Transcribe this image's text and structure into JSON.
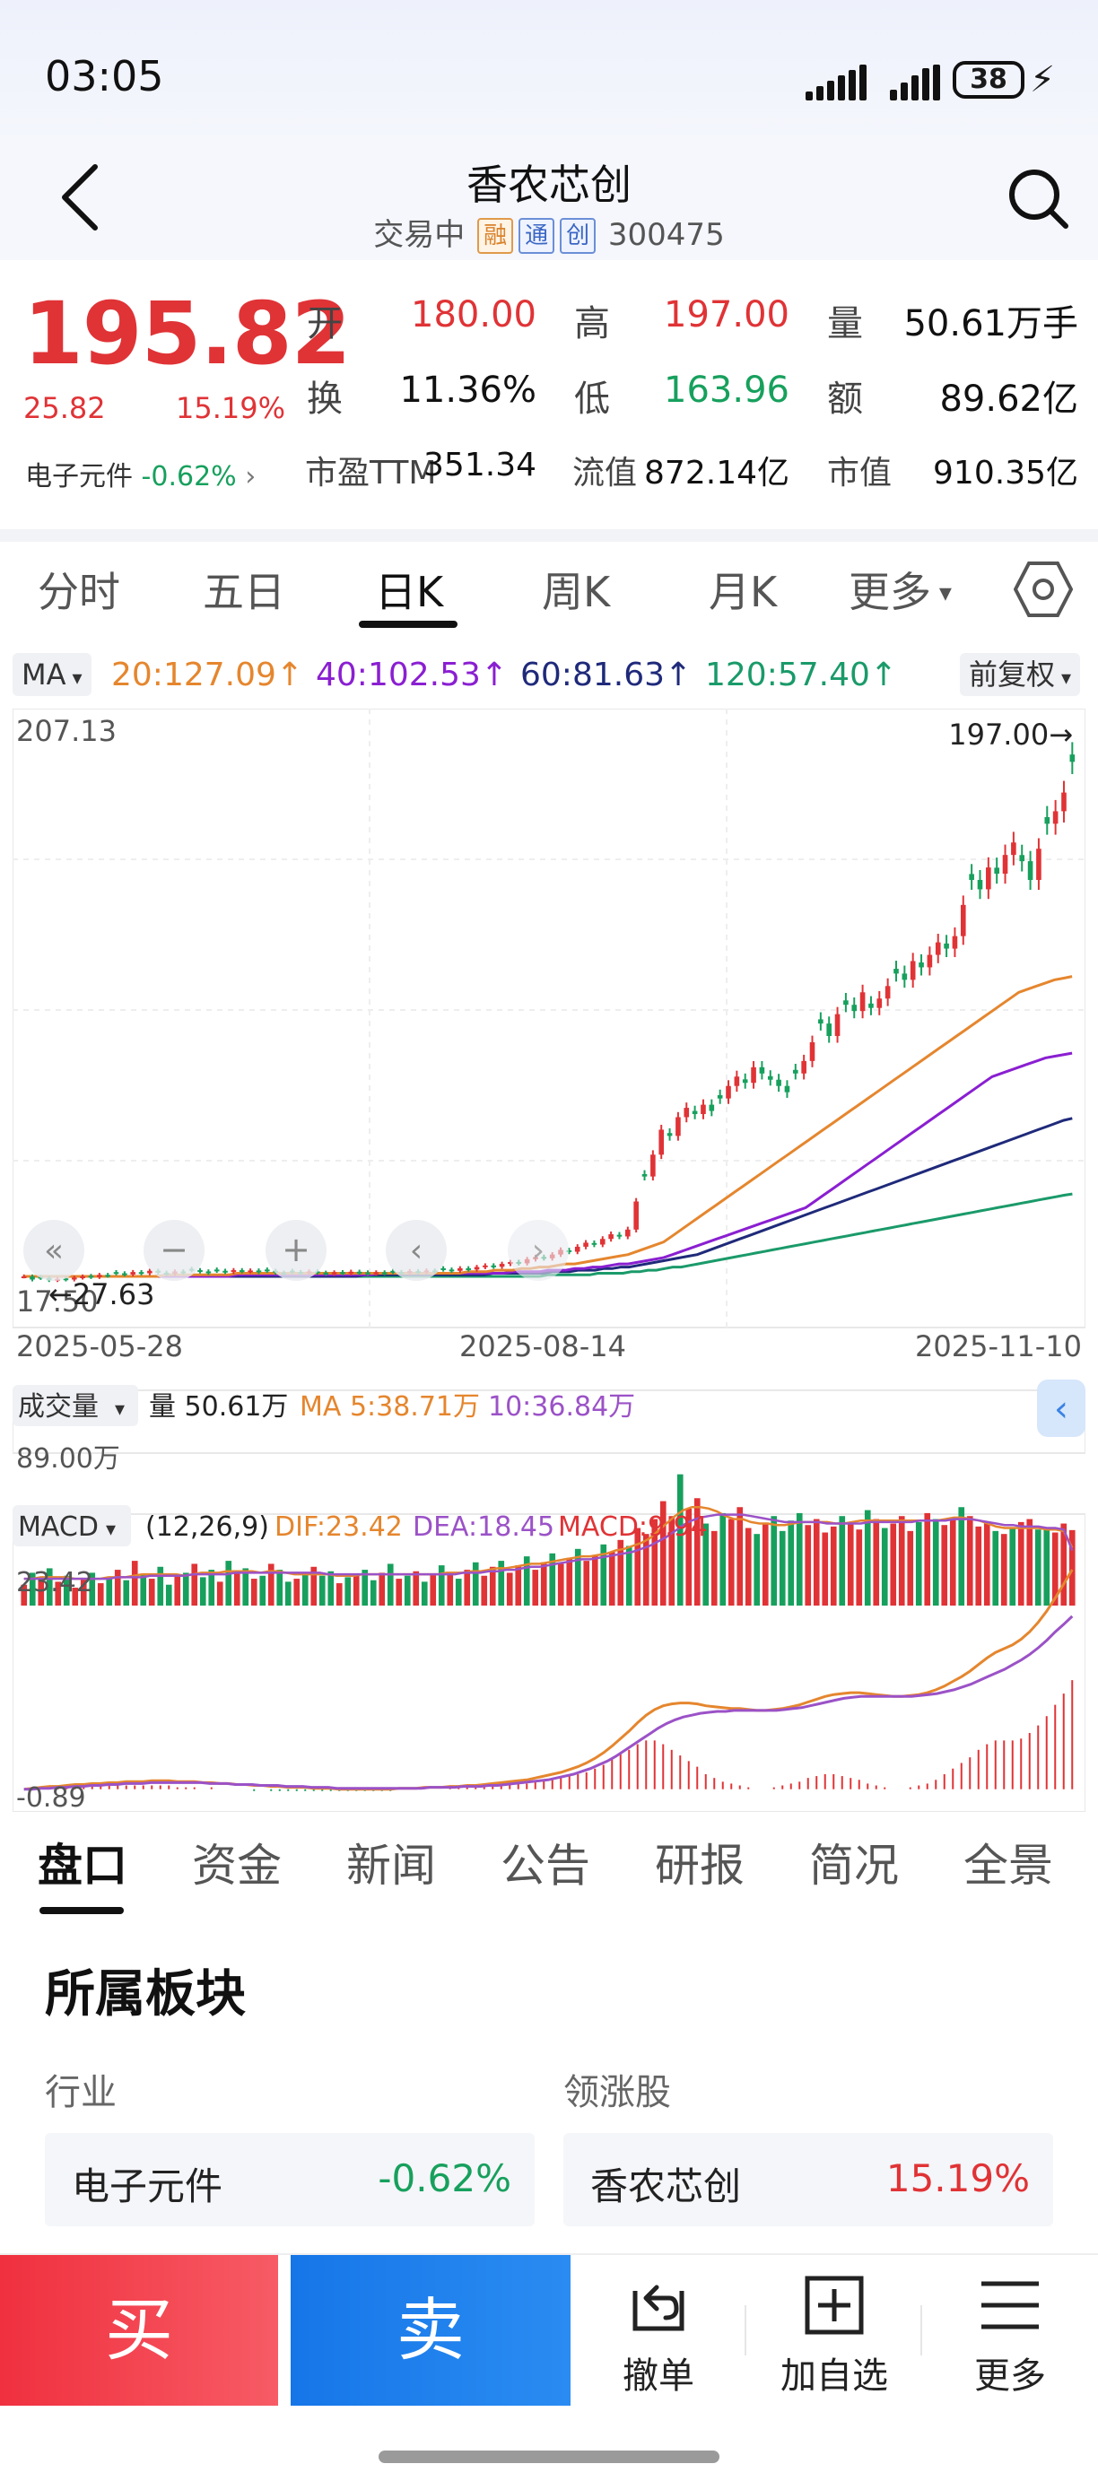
{
  "status_bar": {
    "time": "03:05",
    "battery": "38"
  },
  "header": {
    "title": "香农芯创",
    "status": "交易中",
    "tags": [
      "融",
      "通",
      "创"
    ],
    "code": "300475"
  },
  "quote": {
    "price": "195.82",
    "change": "25.82",
    "change_pct": "15.19%",
    "sector_name": "电子元件",
    "sector_change": "-0.62%",
    "fields": {
      "open_label": "开",
      "open": "180.00",
      "high_label": "高",
      "high": "197.00",
      "volume_label": "量",
      "volume": "50.61万手",
      "turnover_label": "换",
      "turnover": "11.36%",
      "low_label": "低",
      "low": "163.96",
      "amount_label": "额",
      "amount": "89.62亿",
      "pe_label": "市盈TTM",
      "pe": "351.34",
      "float_label": "流值",
      "float_value": "872.14亿",
      "mcap_label": "市值",
      "mcap": "910.35亿"
    }
  },
  "kline_tabs": [
    "分时",
    "五日",
    "日K",
    "周K",
    "月K",
    "更多"
  ],
  "ma_row": {
    "selector": "MA",
    "ma20": "20:127.09↑",
    "ma40": "40:102.53↑",
    "ma60": "60:81.63↑",
    "ma120": "120:57.40↑",
    "adjust": "前复权"
  },
  "colors": {
    "up": "#e03336",
    "down": "#17a05d",
    "ma20": "#e5862e",
    "ma40": "#8a1fd1",
    "ma60": "#1f2a7a",
    "ma120": "#1a9a6a",
    "dif": "#e5862e",
    "dea": "#9b52c7"
  },
  "chart_data": [
    {
      "type": "candlestick",
      "y_max_label": "207.13",
      "y_min_label": "17.50",
      "high_marker": "197.00→",
      "low_marker": "←27.63",
      "x_ticks": [
        "2025-05-28",
        "2025-08-14",
        "2025-11-10"
      ],
      "ylim": [
        17.5,
        207.13
      ],
      "closes": [
        31,
        30,
        30.5,
        29.8,
        30.2,
        30,
        30.6,
        31,
        30.8,
        31.5,
        31.2,
        32,
        31.6,
        32.4,
        32,
        32.8,
        32.2,
        31.8,
        32.6,
        32.2,
        33,
        32.6,
        32.1,
        32.8,
        32.4,
        33,
        32.6,
        32.9,
        32.4,
        32.8,
        32.2,
        31.9,
        32.4,
        32.1,
        32.6,
        32.2,
        31.8,
        32.3,
        32,
        32.5,
        32.1,
        31.9,
        32.3,
        32,
        32.4,
        32.1,
        32.7,
        32.3,
        32.9,
        32.5,
        33.2,
        32.8,
        33.6,
        33.2,
        34,
        34.5,
        34.1,
        35,
        35.6,
        35.2,
        36.5,
        37.2,
        36.8,
        38,
        39.5,
        38.9,
        40.5,
        41.8,
        41.2,
        43,
        44.5,
        43.8,
        46,
        55,
        63,
        70,
        78,
        76,
        82,
        85,
        83,
        86,
        84,
        88,
        92,
        95,
        93,
        98,
        96,
        94,
        92,
        90,
        96,
        100,
        106,
        112,
        108,
        115,
        118,
        116,
        122,
        117,
        120,
        124,
        128,
        126,
        132,
        130,
        134,
        138,
        136,
        140,
        150,
        158,
        155,
        162,
        160,
        166,
        170,
        164,
        158,
        168,
        176,
        180,
        186,
        195.82
      ],
      "ma20": [
        31,
        31,
        31,
        31,
        31,
        31,
        31,
        31,
        31,
        31,
        31,
        31,
        31,
        31,
        31,
        31,
        31.5,
        31.5,
        31.5,
        31.5,
        31.5,
        31.5,
        31.5,
        31.5,
        32,
        32,
        32,
        32,
        32,
        32,
        32,
        32,
        32,
        32,
        32,
        32,
        32,
        32,
        32,
        32,
        32,
        32,
        32,
        32,
        32,
        32,
        32,
        32,
        32,
        32,
        32.5,
        32.5,
        32.5,
        33,
        33,
        33,
        33.5,
        33.5,
        34,
        34,
        34.5,
        35,
        35,
        35.5,
        36,
        36.5,
        37,
        37.5,
        38,
        39,
        40,
        41,
        42,
        44,
        46,
        48,
        50,
        52,
        54,
        56,
        58,
        60,
        62,
        64,
        66,
        68,
        70,
        72,
        74,
        76,
        78,
        80,
        82,
        84,
        86,
        88,
        90,
        92,
        94,
        96,
        98,
        100,
        102,
        104,
        106,
        108,
        110,
        112,
        114,
        116,
        118,
        120,
        122,
        123,
        124,
        125,
        126,
        126.5,
        127.09
      ],
      "ma40": [
        31,
        31,
        31,
        31,
        31,
        31,
        31,
        31,
        31,
        31,
        31,
        31,
        31,
        31,
        31,
        31,
        31,
        31,
        31,
        31,
        31,
        31,
        31,
        31,
        31.5,
        31.5,
        31.5,
        31.5,
        31.5,
        31.5,
        31.5,
        31.5,
        31.5,
        31.5,
        31.5,
        31.5,
        31.5,
        31.5,
        31.5,
        31.5,
        32,
        32,
        32,
        32,
        32,
        32,
        32,
        32,
        32,
        32,
        32,
        32,
        32,
        32,
        32,
        32.5,
        32.5,
        32.5,
        32.5,
        33,
        33,
        33,
        33.5,
        33.5,
        34,
        34,
        34.5,
        35,
        35,
        35.5,
        36,
        36.5,
        37,
        38,
        39,
        40,
        41,
        42,
        43,
        44,
        45,
        46,
        47,
        48,
        49,
        50,
        51,
        52,
        53,
        55,
        57,
        59,
        61,
        63,
        65,
        67,
        69,
        71,
        73,
        75,
        77,
        79,
        81,
        83,
        85,
        87,
        89,
        91,
        93,
        95,
        96,
        97,
        98,
        99,
        100,
        101,
        101.5,
        102,
        102.53
      ],
      "ma60": [
        31,
        31,
        31,
        31,
        31,
        31,
        31,
        31,
        31,
        31,
        31,
        31,
        31,
        31,
        31,
        31,
        31,
        31,
        31,
        31,
        31,
        31,
        31,
        31,
        31,
        31,
        31,
        31,
        31,
        31,
        31,
        31,
        31,
        31,
        31,
        31,
        31,
        31,
        31,
        31,
        31.5,
        31.5,
        31.5,
        31.5,
        31.5,
        31.5,
        31.5,
        31.5,
        31.5,
        31.5,
        31.5,
        31.5,
        31.5,
        31.5,
        31.5,
        32,
        32,
        32,
        32,
        32,
        32,
        32,
        32.5,
        32.5,
        32.5,
        33,
        33,
        33,
        33.5,
        33.5,
        34,
        34,
        34.5,
        35,
        35.5,
        36,
        36.5,
        37,
        37.5,
        38,
        39,
        40,
        41,
        42,
        43,
        44,
        45,
        46,
        47,
        48,
        49,
        50,
        51,
        52,
        53,
        54,
        55,
        56,
        57,
        58,
        59,
        60,
        61,
        62,
        63,
        64,
        65,
        66,
        67,
        68,
        69,
        70,
        71,
        72,
        73,
        74,
        75,
        76,
        77,
        78,
        79,
        80,
        81,
        81.63
      ],
      "ma120": [
        31,
        31,
        31,
        31,
        31,
        31,
        31,
        31,
        31,
        31,
        31,
        31,
        31,
        31,
        31,
        31,
        31,
        31,
        31,
        31,
        31,
        31,
        31,
        31,
        31,
        31,
        31,
        31,
        31,
        31,
        31,
        31,
        31,
        31,
        31,
        31,
        31,
        31,
        31,
        31,
        31,
        31,
        31,
        31,
        31,
        31,
        31,
        31,
        31,
        31,
        31,
        31,
        31,
        31,
        31,
        31,
        31,
        31,
        31,
        31,
        31,
        31,
        31,
        31.5,
        31.5,
        31.5,
        31.5,
        31.5,
        31.5,
        32,
        32,
        32,
        32,
        32.5,
        32.5,
        33,
        33,
        33.5,
        34,
        34,
        34.5,
        35,
        35.5,
        36,
        36.5,
        37,
        37.5,
        38,
        38.5,
        39,
        39.5,
        40,
        40.5,
        41,
        41.5,
        42,
        42.5,
        43,
        43.5,
        44,
        44.5,
        45,
        45.5,
        46,
        46.5,
        47,
        47.5,
        48,
        48.5,
        49,
        49.5,
        50,
        50.5,
        51,
        51.5,
        52,
        52.5,
        53,
        53.5,
        54,
        54.5,
        55,
        55.5,
        56,
        56.5,
        57,
        57.4
      ]
    },
    {
      "type": "bar",
      "name_label": "成交量",
      "volume_label": "量 50.61万",
      "ma5_label": "MA 5:38.71万",
      "ma10_label": "10:36.84万",
      "y_max_label": "89.00万",
      "ylim": [
        0,
        89
      ],
      "values": [
        14,
        22,
        18,
        25,
        16,
        20,
        12,
        18,
        22,
        15,
        19,
        24,
        17,
        30,
        21,
        18,
        26,
        14,
        20,
        22,
        28,
        19,
        24,
        16,
        30,
        22,
        25,
        18,
        20,
        28,
        24,
        16,
        18,
        22,
        26,
        20,
        23,
        15,
        19,
        21,
        24,
        17,
        22,
        28,
        18,
        20,
        23,
        16,
        21,
        27,
        22,
        18,
        24,
        29,
        20,
        26,
        30,
        22,
        27,
        33,
        24,
        29,
        35,
        28,
        32,
        38,
        30,
        34,
        41,
        36,
        44,
        40,
        52,
        48,
        58,
        70,
        60,
        88,
        65,
        72,
        55,
        50,
        62,
        58,
        66,
        52,
        48,
        55,
        60,
        50,
        57,
        62,
        54,
        58,
        49,
        53,
        60,
        56,
        51,
        64,
        58,
        52,
        55,
        60,
        50,
        56,
        62,
        58,
        54,
        59,
        66,
        60,
        53,
        55,
        50,
        48,
        52,
        56,
        58,
        51,
        52,
        49,
        55,
        50.61
      ],
      "ma5": [
        18,
        18,
        19,
        19,
        19,
        19,
        18,
        18,
        18,
        18,
        19,
        19,
        19,
        20,
        21,
        21,
        21,
        21,
        21,
        20,
        21,
        22,
        22,
        22,
        23,
        23,
        23,
        23,
        22,
        23,
        23,
        22,
        21,
        21,
        21,
        21,
        21,
        20,
        20,
        20,
        21,
        21,
        21,
        21,
        21,
        21,
        21,
        21,
        21,
        21,
        22,
        22,
        22,
        23,
        23,
        24,
        25,
        25,
        26,
        27,
        28,
        28,
        29,
        30,
        31,
        32,
        33,
        33,
        34,
        35,
        37,
        38,
        40,
        42,
        45,
        50,
        55,
        60,
        64,
        66,
        66,
        65,
        63,
        60,
        58,
        58,
        56,
        55,
        55,
        54,
        54,
        55,
        56,
        56,
        56,
        56,
        55,
        55,
        56,
        57,
        57,
        57,
        57,
        57,
        57,
        57,
        57,
        57,
        57,
        58,
        59,
        59,
        58,
        57,
        55,
        53,
        52,
        52,
        52,
        52,
        52,
        51,
        51,
        50,
        38.71
      ],
      "ma10": [
        18,
        18,
        18,
        18,
        18,
        18,
        18,
        18,
        18,
        18,
        18,
        19,
        19,
        19,
        19,
        20,
        20,
        20,
        20,
        20,
        21,
        21,
        21,
        21,
        21,
        22,
        22,
        22,
        22,
        22,
        22,
        22,
        22,
        22,
        22,
        22,
        21,
        21,
        21,
        21,
        21,
        21,
        21,
        21,
        21,
        21,
        21,
        21,
        21,
        21,
        21,
        21,
        22,
        22,
        22,
        23,
        23,
        24,
        24,
        25,
        26,
        26,
        27,
        28,
        29,
        30,
        31,
        31,
        32,
        33,
        34,
        35,
        36,
        38,
        40,
        43,
        46,
        50,
        54,
        57,
        59,
        60,
        61,
        61,
        61,
        61,
        60,
        59,
        58,
        57,
        56,
        56,
        56,
        56,
        56,
        55,
        55,
        55,
        55,
        55,
        56,
        56,
        56,
        56,
        56,
        56,
        57,
        57,
        57,
        57,
        58,
        58,
        58,
        57,
        56,
        55,
        54,
        54,
        53,
        53,
        53,
        52,
        52,
        51,
        36.84
      ]
    },
    {
      "type": "line",
      "name_label": "MACD",
      "params": "(12,26,9)",
      "dif_label": "DIF:23.42",
      "dea_label": "DEA:18.45",
      "macd_label": "MACD:9.94",
      "y_max_label": "23.42",
      "y_min_label": "-0.89",
      "ylim": [
        -0.89,
        23.42
      ],
      "dif": [
        0,
        0.1,
        0.2,
        0.3,
        0.3,
        0.4,
        0.5,
        0.5,
        0.6,
        0.6,
        0.7,
        0.7,
        0.8,
        0.8,
        0.8,
        0.9,
        0.9,
        0.9,
        0.8,
        0.8,
        0.8,
        0.7,
        0.7,
        0.6,
        0.6,
        0.5,
        0.5,
        0.4,
        0.4,
        0.3,
        0.3,
        0.2,
        0.2,
        0.2,
        0.1,
        0.1,
        0.1,
        0,
        0,
        0,
        0,
        0,
        0,
        0,
        0.1,
        0.1,
        0.1,
        0.2,
        0.2,
        0.2,
        0.3,
        0.3,
        0.4,
        0.4,
        0.5,
        0.6,
        0.7,
        0.8,
        0.9,
        1,
        1.2,
        1.4,
        1.6,
        1.8,
        2.1,
        2.4,
        2.8,
        3.3,
        3.9,
        4.6,
        5.4,
        6.2,
        7.1,
        7.9,
        8.5,
        8.9,
        9.1,
        9.2,
        9.2,
        9.1,
        8.9,
        8.8,
        8.7,
        8.6,
        8.6,
        8.5,
        8.4,
        8.4,
        8.5,
        8.6,
        8.8,
        9,
        9.3,
        9.6,
        9.9,
        10.1,
        10.2,
        10.3,
        10.3,
        10.2,
        10.1,
        10,
        9.9,
        9.9,
        10,
        10.1,
        10.3,
        10.6,
        11,
        11.5,
        12,
        12.6,
        13.3,
        14,
        14.6,
        15,
        15.4,
        16,
        16.8,
        17.8,
        19,
        20.4,
        21.9,
        23.42
      ],
      "dea": [
        0,
        0,
        0.1,
        0.1,
        0.2,
        0.2,
        0.3,
        0.3,
        0.4,
        0.4,
        0.5,
        0.5,
        0.6,
        0.6,
        0.6,
        0.7,
        0.7,
        0.7,
        0.7,
        0.7,
        0.7,
        0.7,
        0.6,
        0.6,
        0.6,
        0.5,
        0.5,
        0.5,
        0.4,
        0.4,
        0.4,
        0.3,
        0.3,
        0.3,
        0.2,
        0.2,
        0.2,
        0.1,
        0.1,
        0.1,
        0.1,
        0.1,
        0.1,
        0.1,
        0.1,
        0.1,
        0.1,
        0.1,
        0.2,
        0.2,
        0.2,
        0.2,
        0.3,
        0.3,
        0.3,
        0.4,
        0.4,
        0.5,
        0.6,
        0.7,
        0.8,
        0.9,
        1,
        1.2,
        1.4,
        1.6,
        1.9,
        2.2,
        2.6,
        3,
        3.5,
        4.1,
        4.7,
        5.3,
        5.9,
        6.5,
        7,
        7.4,
        7.7,
        7.9,
        8.1,
        8.2,
        8.3,
        8.3,
        8.4,
        8.4,
        8.4,
        8.4,
        8.4,
        8.4,
        8.5,
        8.6,
        8.7,
        8.9,
        9.1,
        9.3,
        9.5,
        9.7,
        9.8,
        9.9,
        9.9,
        9.9,
        9.9,
        9.9,
        9.9,
        9.9,
        10,
        10.1,
        10.2,
        10.4,
        10.6,
        10.9,
        11.2,
        11.6,
        12,
        12.4,
        12.8,
        13.3,
        13.8,
        14.4,
        15.1,
        15.9,
        16.8,
        17.6,
        18.45
      ]
    }
  ],
  "info_tabs": [
    "盘口",
    "资金",
    "新闻",
    "公告",
    "研报",
    "简况",
    "全景"
  ],
  "sector_block": {
    "title": "所属板块",
    "industry_label": "行业",
    "leader_label": "领涨股",
    "industry_name": "电子元件",
    "industry_change": "-0.62%",
    "leader_name": "香农芯创",
    "leader_change": "15.19%"
  },
  "bottom_bar": {
    "buy": "买",
    "sell": "卖",
    "cancel": "撤单",
    "add_watch": "加自选",
    "more": "更多"
  }
}
